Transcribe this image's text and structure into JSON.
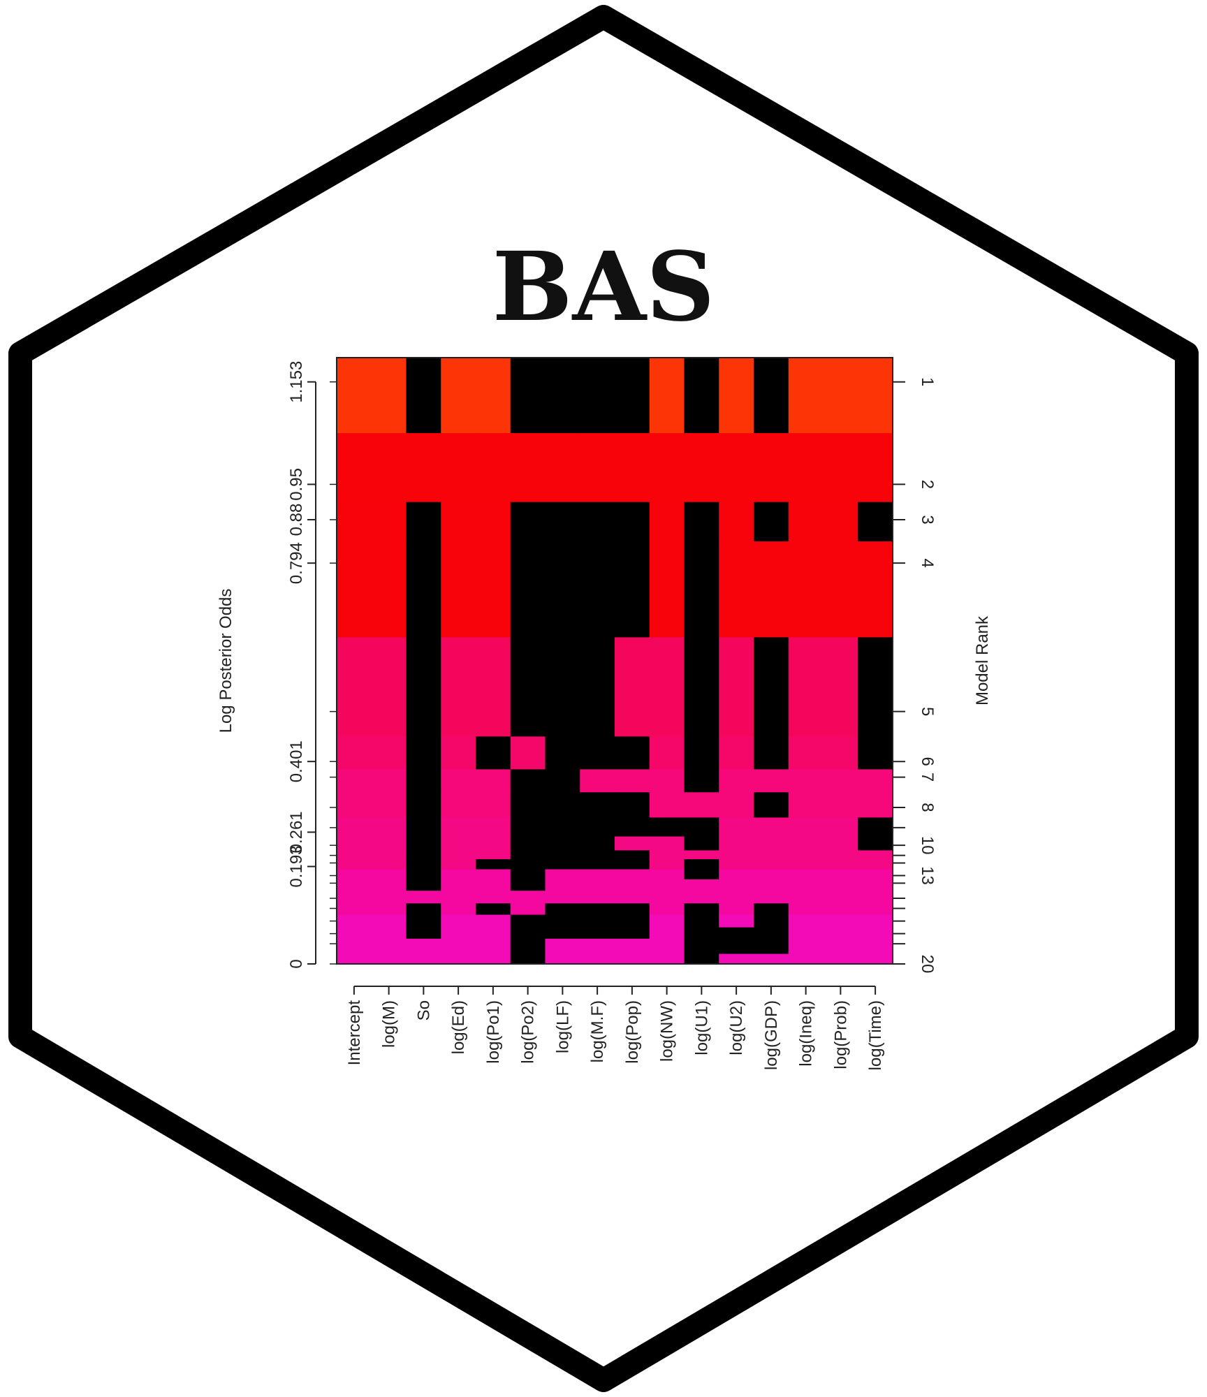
{
  "logo": {
    "title": "BAS",
    "border_color": "#000000",
    "background_color": "#ffffff"
  },
  "chart_data": {
    "type": "heatmap",
    "title": "",
    "xlabel": "",
    "ylabel": "Log Posterior Odds",
    "y2label": "Model Rank",
    "variables": [
      "Intercept",
      "log(M)",
      "So",
      "log(Ed)",
      "log(Po1)",
      "log(Po2)",
      "log(LF)",
      "log(M.F)",
      "log(Pop)",
      "log(NW)",
      "log(U1)",
      "log(U2)",
      "log(GDP)",
      "log(Ineq)",
      "log(Prob)",
      "log(Time)"
    ],
    "y_ticks": [
      "0",
      "0.193",
      "0.261",
      "0.401",
      "0.794",
      "0.88",
      "0.95",
      "1.153"
    ],
    "rank_ticks": [
      "1",
      "2",
      "3",
      "4",
      "5",
      "6",
      "7",
      "8",
      "10",
      "13",
      "20"
    ],
    "models": [
      {
        "rank": 1,
        "log_posterior_odds": 1.153,
        "color": "#fb3505",
        "included": [
          1,
          1,
          0,
          1,
          1,
          0,
          0,
          0,
          0,
          1,
          0,
          1,
          0,
          1,
          1,
          1
        ]
      },
      {
        "rank": 2,
        "log_posterior_odds": 0.95,
        "color": "#f70309",
        "included": [
          1,
          1,
          1,
          1,
          1,
          1,
          1,
          1,
          1,
          1,
          1,
          1,
          1,
          1,
          1,
          1
        ]
      },
      {
        "rank": 3,
        "log_posterior_odds": 0.88,
        "color": "#f8030b",
        "included": [
          1,
          1,
          0,
          1,
          1,
          0,
          0,
          0,
          0,
          1,
          0,
          1,
          0,
          1,
          1,
          0
        ]
      },
      {
        "rank": 4,
        "log_posterior_odds": 0.794,
        "color": "#f8030b",
        "included": [
          1,
          1,
          0,
          1,
          1,
          0,
          0,
          0,
          0,
          1,
          0,
          1,
          1,
          1,
          1,
          1
        ]
      },
      {
        "rank": 5,
        "log_posterior_odds": 0.5,
        "color": "#f4065c",
        "included": [
          1,
          1,
          0,
          1,
          1,
          0,
          0,
          0,
          1,
          1,
          0,
          1,
          0,
          1,
          1,
          0
        ]
      },
      {
        "rank": 6,
        "log_posterior_odds": 0.401,
        "color": "#f40768",
        "included": [
          1,
          1,
          0,
          1,
          0,
          1,
          0,
          0,
          0,
          1,
          0,
          1,
          0,
          1,
          1,
          0
        ]
      },
      {
        "rank": 7,
        "log_posterior_odds": 0.37,
        "color": "#f6077a",
        "included": [
          1,
          1,
          0,
          1,
          1,
          0,
          0,
          1,
          1,
          1,
          0,
          1,
          1,
          1,
          1,
          1
        ]
      },
      {
        "rank": 8,
        "log_posterior_odds": 0.31,
        "color": "#f6077a",
        "included": [
          1,
          1,
          0,
          1,
          1,
          0,
          0,
          0,
          0,
          1,
          1,
          1,
          0,
          1,
          1,
          1
        ]
      },
      {
        "rank": 9,
        "log_posterior_odds": 0.27,
        "color": "#f50883",
        "included": [
          1,
          1,
          0,
          1,
          1,
          0,
          0,
          0,
          0,
          0,
          0,
          1,
          1,
          1,
          1,
          0
        ]
      },
      {
        "rank": 10,
        "log_posterior_odds": 0.235,
        "color": "#f50883",
        "included": [
          1,
          1,
          0,
          1,
          1,
          0,
          0,
          0,
          1,
          1,
          0,
          1,
          1,
          1,
          1,
          0
        ]
      },
      {
        "rank": 11,
        "log_posterior_odds": 0.215,
        "color": "#f50883",
        "included": [
          1,
          1,
          0,
          1,
          1,
          0,
          0,
          0,
          0,
          1,
          1,
          1,
          1,
          1,
          1,
          1
        ]
      },
      {
        "rank": 12,
        "log_posterior_odds": 0.2,
        "color": "#f50883",
        "included": [
          1,
          1,
          0,
          1,
          0,
          0,
          0,
          0,
          0,
          1,
          0,
          1,
          1,
          1,
          1,
          1
        ]
      },
      {
        "rank": 13,
        "log_posterior_odds": 0.175,
        "color": "#f408a0",
        "included": [
          1,
          1,
          0,
          1,
          1,
          0,
          1,
          1,
          1,
          1,
          0,
          1,
          1,
          1,
          1,
          1
        ]
      },
      {
        "rank": 14,
        "log_posterior_odds": 0.16,
        "color": "#f408a0",
        "included": [
          1,
          1,
          0,
          1,
          1,
          0,
          1,
          1,
          1,
          1,
          1,
          1,
          1,
          1,
          1,
          1
        ]
      },
      {
        "rank": 15,
        "log_posterior_odds": 0.13,
        "color": "#f408a0",
        "included": [
          1,
          1,
          1,
          1,
          1,
          1,
          1,
          1,
          1,
          1,
          1,
          1,
          1,
          1,
          1,
          1
        ]
      },
      {
        "rank": 16,
        "log_posterior_odds": 0.11,
        "color": "#f408a0",
        "included": [
          1,
          1,
          0,
          1,
          0,
          1,
          0,
          0,
          0,
          1,
          0,
          1,
          0,
          1,
          1,
          1
        ]
      },
      {
        "rank": 17,
        "log_posterior_odds": 0.085,
        "color": "#f40bb8",
        "included": [
          1,
          1,
          0,
          1,
          1,
          0,
          0,
          0,
          0,
          1,
          0,
          1,
          0,
          1,
          1,
          1
        ]
      },
      {
        "rank": 18,
        "log_posterior_odds": 0.06,
        "color": "#f40bb8",
        "included": [
          1,
          1,
          0,
          1,
          1,
          0,
          0,
          0,
          0,
          1,
          0,
          0,
          0,
          1,
          1,
          1
        ]
      },
      {
        "rank": 19,
        "log_posterior_odds": 0.04,
        "color": "#f40bb8",
        "included": [
          1,
          1,
          1,
          1,
          1,
          0,
          1,
          1,
          1,
          1,
          0,
          0,
          0,
          1,
          1,
          1
        ]
      },
      {
        "rank": 20,
        "log_posterior_odds": 0.0,
        "color": "#f40bb8",
        "included": [
          1,
          1,
          1,
          1,
          1,
          0,
          1,
          1,
          1,
          1,
          0,
          1,
          1,
          1,
          1,
          1
        ]
      }
    ],
    "excluded_color": "#000000",
    "grid": false,
    "legend": "none"
  }
}
